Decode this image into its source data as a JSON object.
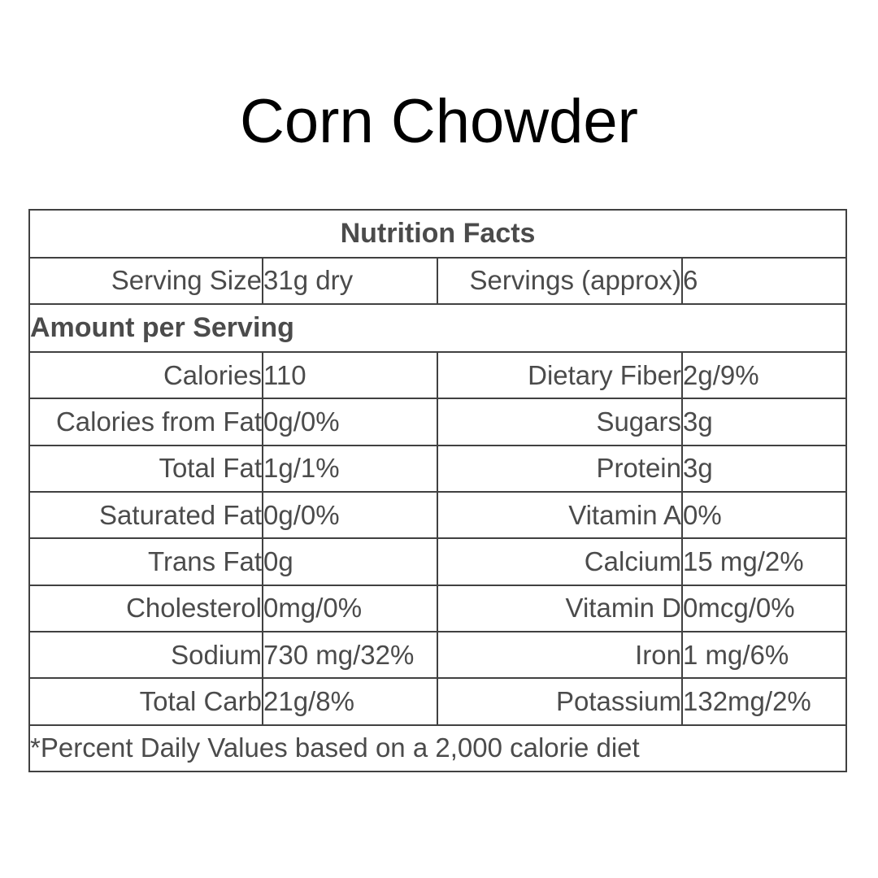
{
  "title": "Corn Chowder",
  "nutrition_table": {
    "header": "Nutrition Facts",
    "serving": {
      "label1": "Serving Size",
      "value1": "31g dry",
      "label2": "Servings (approx)",
      "value2": "6"
    },
    "section_header": "Amount per Serving",
    "rows": [
      {
        "label1": "Calories",
        "value1": "110",
        "label2": "Dietary Fiber",
        "value2": "2g/9%"
      },
      {
        "label1": "Calories from Fat",
        "value1": "0g/0%",
        "label2": "Sugars",
        "value2": "3g"
      },
      {
        "label1": "Total Fat",
        "value1": "1g/1%",
        "label2": "Protein",
        "value2": "3g"
      },
      {
        "label1": "Saturated Fat",
        "value1": "0g/0%",
        "label2": "Vitamin A",
        "value2": "0%"
      },
      {
        "label1": "Trans Fat",
        "value1": "0g",
        "label2": "Calcium",
        "value2": "15 mg/2%"
      },
      {
        "label1": "Cholesterol",
        "value1": "0mg/0%",
        "label2": "Vitamin D",
        "value2": "0mcg/0%"
      },
      {
        "label1": "Sodium",
        "value1": "730 mg/32%",
        "label2": "Iron",
        "value2": "1 mg/6%"
      },
      {
        "label1": "Total Carb",
        "value1": "21g/8%",
        "label2": "Potassium",
        "value2": "132mg/2%"
      }
    ],
    "footnote": "*Percent Daily Values based on a 2,000 calorie diet"
  },
  "colors": {
    "background": "#ffffff",
    "title_text": "#000000",
    "table_text": "#4b4b4b",
    "border": "#414141"
  }
}
